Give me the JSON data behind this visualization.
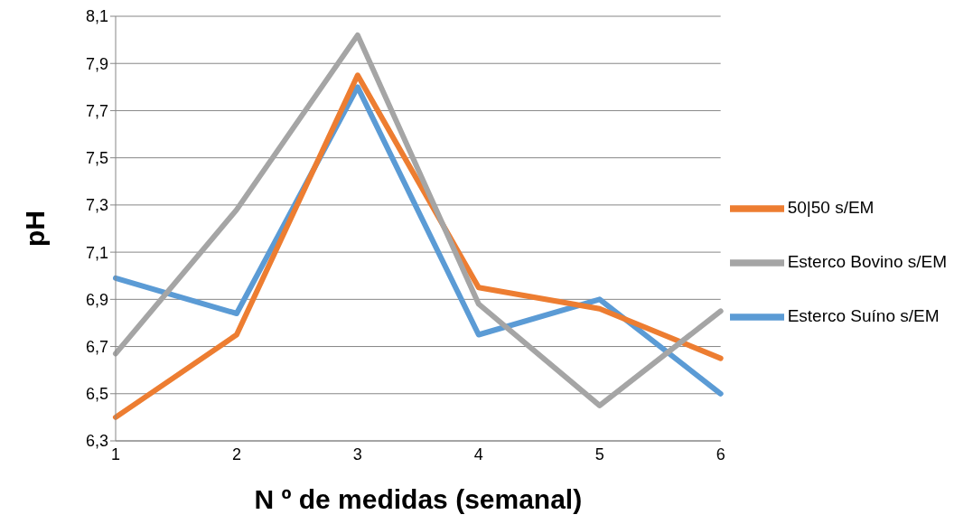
{
  "chart_data": {
    "type": "line",
    "xlabel": "N º de medidas (semanal)",
    "ylabel": "pH",
    "categories": [
      "1",
      "2",
      "3",
      "4",
      "5",
      "6"
    ],
    "series": [
      {
        "name": "Esterco Suíno s/EM",
        "color": "#5b9bd5",
        "values": [
          6.99,
          6.84,
          7.8,
          6.75,
          6.9,
          6.5
        ]
      },
      {
        "name": "50|50 s/EM",
        "color": "#ed7d31",
        "values": [
          6.4,
          6.75,
          7.85,
          6.95,
          6.86,
          6.65
        ]
      },
      {
        "name": "Esterco Bovino s/EM",
        "color": "#a5a5a5",
        "values": [
          6.67,
          7.28,
          8.02,
          6.88,
          6.45,
          6.85
        ]
      }
    ],
    "ylim": [
      6.3,
      8.1
    ],
    "yticks": [
      {
        "value": 6.3,
        "label": "6,3"
      },
      {
        "value": 6.5,
        "label": "6,5"
      },
      {
        "value": 6.7,
        "label": "6,7"
      },
      {
        "value": 6.9,
        "label": "6,9"
      },
      {
        "value": 7.1,
        "label": "7,1"
      },
      {
        "value": 7.3,
        "label": "7,3"
      },
      {
        "value": 7.5,
        "label": "7,5"
      },
      {
        "value": 7.7,
        "label": "7,7"
      },
      {
        "value": 7.9,
        "label": "7,9"
      },
      {
        "value": 8.1,
        "label": "8,1"
      }
    ],
    "grid": "y",
    "legend": "right",
    "marker": "none",
    "line_style": "solid"
  }
}
